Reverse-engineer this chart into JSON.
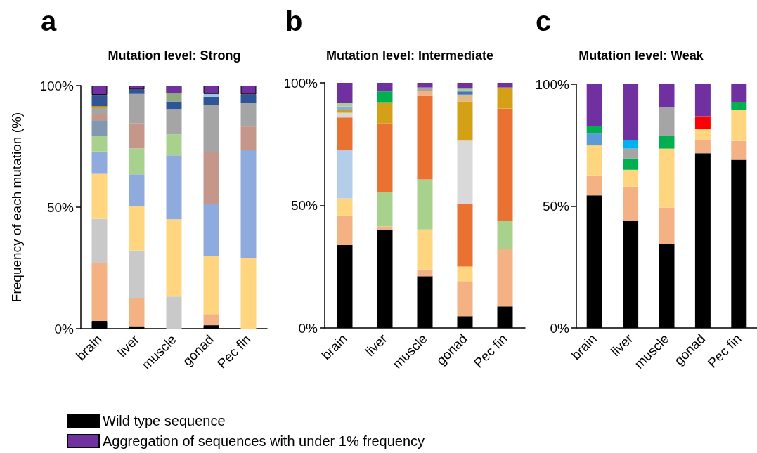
{
  "chart_data": [
    {
      "type": "bar",
      "stacked": true,
      "title": "Mutation level: Strong",
      "ylabel": "Frequency of each mutation (%)",
      "annotations": [
        "a"
      ],
      "legend": "bottom right",
      "categories": [
        "brain",
        "liver",
        "muscle",
        "gonad",
        "Pec fin"
      ],
      "ylim": [
        0,
        100
      ],
      "yticks": [
        {
          "value": 0,
          "label": "0%"
        },
        {
          "value": 50,
          "label": "50%"
        },
        {
          "value": 100,
          "label": "100%"
        }
      ],
      "series": [
        {
          "name": "Wild type sequence",
          "color": "#000000",
          "values": [
            3.2,
            1.0,
            null,
            1.4,
            null
          ]
        },
        {
          "colors": [
            "#f4b183",
            "#f4b183",
            "#c9c9c9",
            "#f4b183",
            "#ffd67f"
          ],
          "values": [
            23.7,
            11.7,
            13.2,
            4.6,
            29.0
          ]
        },
        {
          "colors": [
            "#c9c9c9",
            "#c9c9c9",
            "#ffd67f",
            "#ffd67f",
            "#8faadc"
          ],
          "values": [
            18.3,
            19.5,
            31.8,
            23.8,
            44.6
          ]
        },
        {
          "colors": [
            "#ffd67f",
            "#ffd67f",
            "#8faadc",
            "#8faadc",
            "#c5978a"
          ],
          "values": [
            18.5,
            18.3,
            26.3,
            21.4,
            9.6
          ]
        },
        {
          "colors": [
            "#8faadc",
            "#8faadc",
            "#a9d18e",
            "#c5978a",
            "#a5a5a5"
          ],
          "values": [
            9.2,
            13.0,
            8.7,
            21.4,
            9.8
          ]
        },
        {
          "colors": [
            "#a9d18e",
            "#a9d18e",
            "#a5a5a5",
            "#a5a5a5",
            "#2f5597"
          ],
          "values": [
            6.4,
            10.7,
            10.4,
            19.5,
            3.4
          ]
        },
        {
          "colors": [
            "#8497b0",
            "#c5978a",
            "#2f5597",
            "#2f5597",
            null
          ],
          "values": [
            6.5,
            10.4,
            3.1,
            3.3,
            null
          ]
        },
        {
          "colors": [
            "#c5978a",
            "#a5a5a5",
            "#8faa7c",
            "#9dc3e6",
            null
          ],
          "values": [
            2.6,
            12.0,
            3.3,
            1.2,
            null
          ]
        },
        {
          "colors": [
            "#a5a5a5",
            "#2f5597",
            null,
            null,
            null
          ],
          "values": [
            2.4,
            1.8,
            null,
            null,
            null
          ]
        },
        {
          "colors": [
            "#bf9000",
            null,
            null,
            null,
            null
          ],
          "values": [
            0.8,
            null,
            null,
            null,
            null
          ]
        },
        {
          "colors": [
            "#2f5597",
            null,
            null,
            null,
            null
          ],
          "values": [
            4.6,
            null,
            null,
            null,
            null
          ]
        },
        {
          "name": "Aggregation of sequences with under 1% frequency",
          "color": "#7030a0",
          "values": [
            3.8,
            1.6,
            3.2,
            3.4,
            3.6
          ]
        }
      ]
    },
    {
      "type": "bar",
      "stacked": true,
      "title": "Mutation level: Intermediate",
      "annotations": [
        "b"
      ],
      "categories": [
        "brain",
        "liver",
        "muscle",
        "gonad",
        "Pec fin"
      ],
      "ylim": [
        0,
        100
      ],
      "yticks": [
        {
          "value": 0,
          "label": "0%"
        },
        {
          "value": 50,
          "label": "50%"
        },
        {
          "value": 100,
          "label": "100%"
        }
      ],
      "series": [
        {
          "color": "#000000",
          "values": [
            33.8,
            40.0,
            21.1,
            4.8,
            8.8
          ]
        },
        {
          "colors": [
            "#f4b183",
            "#f4b183",
            "#f4b183",
            "#f4b183",
            "#f4b183"
          ],
          "values": [
            12.1,
            1.4,
            2.8,
            14.3,
            23.3
          ]
        },
        {
          "colors": [
            "#ffd67f",
            "#a9d18e",
            "#ffd67f",
            "#ffd67f",
            "#a9d18e"
          ],
          "values": [
            7.0,
            14.1,
            16.3,
            6.0,
            11.7
          ]
        },
        {
          "colors": [
            "#b4cde9",
            "#e97132",
            "#a9d18e",
            "#e97132",
            "#e97132"
          ],
          "values": [
            19.8,
            28.0,
            20.4,
            25.3,
            45.7
          ]
        },
        {
          "colors": [
            "#e97132",
            "#d4a017",
            "#e97132",
            "#d9d9d9",
            "#d4a017"
          ],
          "values": [
            13.2,
            8.6,
            34.4,
            26.0,
            8.6
          ]
        },
        {
          "colors": [
            "#d9d9d9",
            "#00b050",
            "#f4b183",
            "#d4a017",
            null
          ],
          "values": [
            1.9,
            4.4,
            1.8,
            15.9,
            null
          ]
        },
        {
          "colors": [
            "#d4a017",
            null,
            "#a5a5a5",
            "#e2b97f",
            null
          ],
          "values": [
            1.2,
            null,
            1.3,
            2.9,
            null
          ]
        },
        {
          "colors": [
            "#8faadc",
            null,
            null,
            "#4472c4",
            null
          ],
          "values": [
            1.4,
            null,
            null,
            1.3,
            null
          ]
        },
        {
          "colors": [
            "#a9d18e",
            null,
            null,
            "#a9d18e",
            null
          ],
          "values": [
            1.5,
            null,
            null,
            1.1,
            null
          ]
        },
        {
          "color": "#7030a0",
          "values": [
            8.1,
            3.5,
            1.9,
            2.4,
            1.9
          ]
        }
      ]
    },
    {
      "type": "bar",
      "stacked": true,
      "title": "Mutation level: Weak",
      "annotations": [
        "c"
      ],
      "categories": [
        "brain",
        "liver",
        "muscle",
        "gonad",
        "Pec fin"
      ],
      "ylim": [
        0,
        100
      ],
      "yticks": [
        {
          "value": 0,
          "label": "0%"
        },
        {
          "value": 50,
          "label": "50%"
        },
        {
          "value": 100,
          "label": "100%"
        }
      ],
      "series": [
        {
          "color": "#000000",
          "values": [
            54.4,
            44.1,
            34.5,
            71.7,
            69.0
          ]
        },
        {
          "colors": [
            "#f4b183",
            "#f4b183",
            "#f4b183",
            "#f4b183",
            "#f4b183"
          ],
          "values": [
            8.2,
            13.9,
            14.9,
            5.3,
            7.7
          ]
        },
        {
          "colors": [
            "#ffd67f",
            "#ffd67f",
            "#ffd67f",
            "#ffd67f",
            "#ffd67f"
          ],
          "values": [
            12.3,
            6.9,
            24.2,
            4.6,
            12.7
          ]
        },
        {
          "colors": [
            "#5b9bd5",
            "#00b050",
            "#00b050",
            "#ff0000",
            "#00b050"
          ],
          "values": [
            4.9,
            4.7,
            5.3,
            5.3,
            3.4
          ]
        },
        {
          "colors": [
            "#00b050",
            "#a5a5a5",
            "#a5a5a5",
            null,
            null
          ],
          "values": [
            3.1,
            4.0,
            11.7,
            null,
            null
          ]
        },
        {
          "colors": [
            null,
            "#00b0f0",
            null,
            null,
            null
          ],
          "values": [
            null,
            3.6,
            null,
            null,
            null
          ]
        },
        {
          "color": "#7030a0",
          "values": [
            17.1,
            22.8,
            9.4,
            13.1,
            7.2
          ]
        }
      ]
    }
  ]
}
